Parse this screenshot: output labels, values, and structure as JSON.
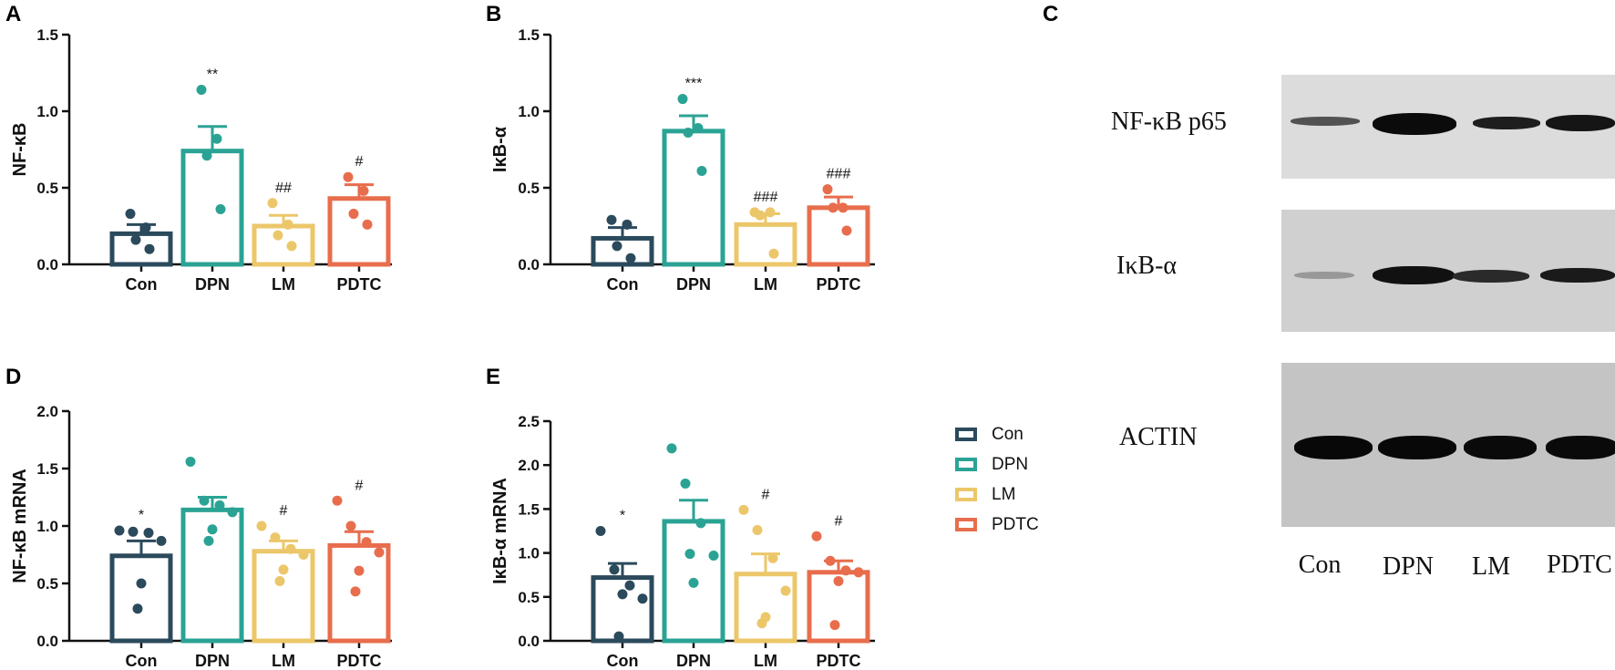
{
  "colors": {
    "Con": "#2b4a5c",
    "DPN": "#2ba394",
    "LM": "#ecc76a",
    "PDTC": "#e86d4c"
  },
  "chart_data": [
    {
      "panel": "A",
      "type": "bar",
      "ylabel": "NF-κB",
      "categories": [
        "Con",
        "DPN",
        "LM",
        "PDTC"
      ],
      "values": [
        0.2,
        0.74,
        0.25,
        0.43
      ],
      "errors": [
        0.06,
        0.16,
        0.07,
        0.09
      ],
      "points": [
        [
          0.33,
          0.24,
          0.16,
          0.1
        ],
        [
          1.14,
          0.82,
          0.71,
          0.36
        ],
        [
          0.4,
          0.26,
          0.19,
          0.12
        ],
        [
          0.57,
          0.48,
          0.33,
          0.26
        ]
      ],
      "annotations": [
        "",
        "**",
        "##",
        "#"
      ],
      "ylim": [
        0,
        1.5
      ],
      "ticks": [
        "0.0",
        "0.5",
        "1.0",
        "1.5"
      ],
      "tick_values": [
        0,
        0.5,
        1.0,
        1.5
      ]
    },
    {
      "panel": "B",
      "type": "bar",
      "ylabel": "IκB-α",
      "categories": [
        "Con",
        "DPN",
        "LM",
        "PDTC"
      ],
      "values": [
        0.17,
        0.87,
        0.26,
        0.37
      ],
      "errors": [
        0.07,
        0.1,
        0.07,
        0.07
      ],
      "points": [
        [
          0.29,
          0.26,
          0.12,
          0.04
        ],
        [
          1.08,
          0.89,
          0.86,
          0.61
        ],
        [
          0.34,
          0.34,
          0.32,
          0.07
        ],
        [
          0.49,
          0.37,
          0.37,
          0.22
        ]
      ],
      "annotations": [
        "",
        "***",
        "###",
        "###"
      ],
      "ylim": [
        0,
        1.5
      ],
      "ticks": [
        "0.0",
        "0.5",
        "1.0",
        "1.5"
      ],
      "tick_values": [
        0,
        0.5,
        1.0,
        1.5
      ]
    },
    {
      "panel": "D",
      "type": "bar",
      "ylabel": "NF-κB mRNA",
      "categories": [
        "Con",
        "DPN",
        "LM",
        "PDTC"
      ],
      "values": [
        0.74,
        1.14,
        0.78,
        0.83
      ],
      "errors": [
        0.13,
        0.11,
        0.09,
        0.12
      ],
      "points": [
        [
          0.96,
          0.95,
          0.94,
          0.87,
          0.5,
          0.28
        ],
        [
          1.56,
          1.22,
          1.18,
          1.12,
          0.97,
          0.87
        ],
        [
          1.0,
          0.9,
          0.8,
          0.75,
          0.62,
          0.52
        ],
        [
          1.22,
          1.0,
          0.86,
          0.77,
          0.61,
          0.43
        ]
      ],
      "annotations": [
        "*",
        "",
        "#",
        "#"
      ],
      "ylim": [
        0,
        2.0
      ],
      "ticks": [
        "0.0",
        "0.5",
        "1.0",
        "1.5",
        "2.0"
      ],
      "tick_values": [
        0,
        0.5,
        1.0,
        1.5,
        2.0
      ]
    },
    {
      "panel": "E",
      "type": "bar",
      "ylabel": "IκB-α mRNA",
      "categories": [
        "Con",
        "DPN",
        "LM",
        "PDTC"
      ],
      "values": [
        0.72,
        1.36,
        0.76,
        0.78
      ],
      "errors": [
        0.16,
        0.24,
        0.23,
        0.13
      ],
      "points": [
        [
          1.25,
          0.81,
          0.63,
          0.48,
          0.53,
          0.05
        ],
        [
          2.19,
          1.79,
          1.34,
          0.97,
          0.66,
          0.99
        ],
        [
          1.49,
          1.26,
          0.94,
          0.57,
          0.27,
          0.2
        ],
        [
          1.19,
          0.91,
          0.8,
          0.78,
          0.68,
          0.18
        ]
      ],
      "annotations": [
        "*",
        "",
        "#",
        "#"
      ],
      "ylim": [
        0,
        2.5
      ],
      "ticks": [
        "0.0",
        "0.5",
        "1.0",
        "1.5",
        "2.0",
        "2.5"
      ],
      "tick_values": [
        0,
        0.5,
        1.0,
        1.5,
        2.0,
        2.5
      ]
    }
  ],
  "panel_letters": {
    "A": "A",
    "B": "B",
    "C": "C",
    "D": "D",
    "E": "E"
  },
  "legend": [
    "Con",
    "DPN",
    "LM",
    "PDTC"
  ],
  "blot": {
    "labels": [
      "NF-κB p65",
      "IκB-α",
      "ACTIN"
    ],
    "lanes": [
      "Con",
      "DPN",
      "LM",
      "PDTC"
    ]
  }
}
